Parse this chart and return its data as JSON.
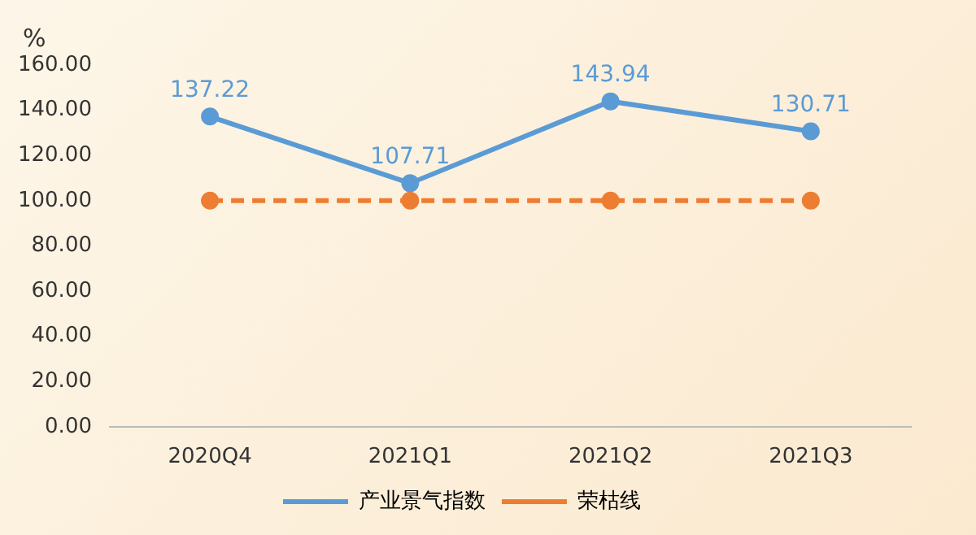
{
  "chart_data": {
    "type": "line",
    "ylabel": "%",
    "categories": [
      "2020Q4",
      "2021Q1",
      "2021Q2",
      "2021Q3"
    ],
    "series": [
      {
        "name": "产业景气指数",
        "color": "#5b9bd5",
        "values": [
          137.22,
          107.71,
          143.94,
          130.71
        ],
        "value_labels": [
          "137.22",
          "107.71",
          "143.94",
          "130.71"
        ],
        "line_style": "solid"
      },
      {
        "name": "荣枯线",
        "color": "#ed7d31",
        "values": [
          100,
          100,
          100,
          100
        ],
        "line_style": "dashed"
      }
    ],
    "ylim": [
      0,
      160
    ],
    "yticks": [
      {
        "value": 0,
        "label": "0.00"
      },
      {
        "value": 20,
        "label": "20.00"
      },
      {
        "value": 40,
        "label": "40.00"
      },
      {
        "value": 60,
        "label": "60.00"
      },
      {
        "value": 80,
        "label": "80.00"
      },
      {
        "value": 100,
        "label": "100.00"
      },
      {
        "value": 120,
        "label": "120.00"
      },
      {
        "value": 140,
        "label": "140.00"
      },
      {
        "value": 160,
        "label": "160.00"
      }
    ],
    "grid": false,
    "legend": "bottom",
    "marker": "circle"
  }
}
